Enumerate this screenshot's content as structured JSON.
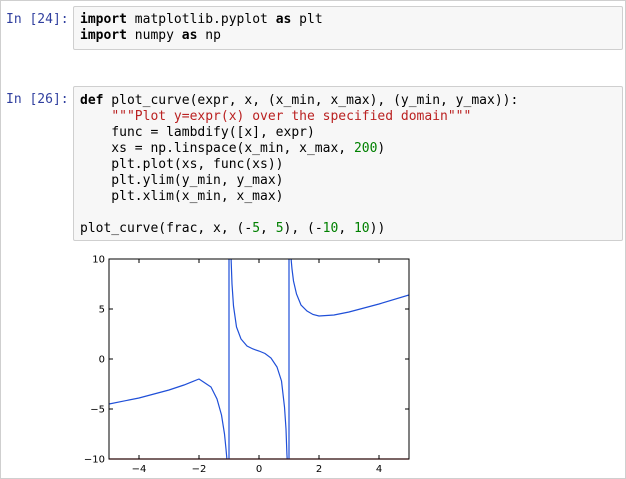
{
  "cells": [
    {
      "prompt": "In [24]:",
      "lines": [
        [
          {
            "t": "import",
            "c": "kw"
          },
          {
            "t": " matplotlib.pyplot ",
            "c": ""
          },
          {
            "t": "as",
            "c": "kw"
          },
          {
            "t": " plt",
            "c": ""
          }
        ],
        [
          {
            "t": "import",
            "c": "kw"
          },
          {
            "t": " numpy ",
            "c": ""
          },
          {
            "t": "as",
            "c": "kw"
          },
          {
            "t": " np",
            "c": ""
          }
        ]
      ]
    },
    {
      "prompt": "In [26]:",
      "lines": [
        [
          {
            "t": "def",
            "c": "kw"
          },
          {
            "t": " plot_curve(expr, x, (x_min, x_max), (y_min, y_max)):",
            "c": ""
          }
        ],
        [
          {
            "t": "    ",
            "c": ""
          },
          {
            "t": "\"\"\"Plot y=expr(x) over the specified domain\"\"\"",
            "c": "str"
          }
        ],
        [
          {
            "t": "    func = lambdify([x], expr)",
            "c": ""
          }
        ],
        [
          {
            "t": "    xs = np.linspace(x_min, x_max, ",
            "c": ""
          },
          {
            "t": "200",
            "c": "num"
          },
          {
            "t": ")",
            "c": ""
          }
        ],
        [
          {
            "t": "    plt.plot(xs, func(xs))",
            "c": ""
          }
        ],
        [
          {
            "t": "    plt.ylim(y_min, y_max)",
            "c": ""
          }
        ],
        [
          {
            "t": "    plt.xlim(x_min, x_max)",
            "c": ""
          }
        ],
        [
          {
            "t": "",
            "c": ""
          }
        ],
        [
          {
            "t": "plot_curve(frac, x, (",
            "c": ""
          },
          {
            "t": "-",
            "c": "neg"
          },
          {
            "t": "5",
            "c": "num"
          },
          {
            "t": ", ",
            "c": ""
          },
          {
            "t": "5",
            "c": "num"
          },
          {
            "t": "), (",
            "c": ""
          },
          {
            "t": "-",
            "c": "neg"
          },
          {
            "t": "10",
            "c": "num"
          },
          {
            "t": ", ",
            "c": ""
          },
          {
            "t": "10",
            "c": "num"
          },
          {
            "t": "))",
            "c": ""
          }
        ]
      ]
    }
  ],
  "chart_data": {
    "type": "line",
    "xlim": [
      -5,
      5
    ],
    "ylim": [
      -10,
      10
    ],
    "xticks": [
      -4,
      -2,
      0,
      2,
      4
    ],
    "yticks": [
      -10,
      -5,
      0,
      5,
      10
    ],
    "xtick_labels": [
      "−4",
      "−2",
      "0",
      "2",
      "4"
    ],
    "ytick_labels": [
      "−10",
      "−5",
      "0",
      "5",
      "10"
    ],
    "vertical_asymptotes": [
      -1,
      1
    ],
    "series": [
      {
        "color": "#1f4fd8",
        "segments": [
          {
            "x": [
              -5.0,
              -4.0,
              -3.0,
              -2.5,
              -2.0,
              -1.6,
              -1.4,
              -1.25,
              -1.15,
              -1.1,
              -1.07,
              -1.05
            ],
            "y": [
              -4.5,
              -3.9,
              -3.1,
              -2.6,
              -2.0,
              -2.8,
              -4.0,
              -5.6,
              -7.5,
              -9.0,
              -10.0,
              -10.6
            ]
          },
          {
            "x": [
              -0.95,
              -0.93,
              -0.9,
              -0.85,
              -0.75,
              -0.6,
              -0.4,
              -0.2,
              0.0,
              0.2,
              0.4,
              0.6,
              0.75,
              0.85,
              0.9,
              0.93,
              0.95
            ],
            "y": [
              10.6,
              10.0,
              7.5,
              5.3,
              3.2,
              2.0,
              1.3,
              1.0,
              0.8,
              0.55,
              0.1,
              -0.8,
              -2.2,
              -4.8,
              -7.0,
              -9.5,
              -10.6
            ]
          },
          {
            "x": [
              1.04,
              1.07,
              1.1,
              1.15,
              1.25,
              1.4,
              1.6,
              1.8,
              2.0,
              2.5,
              3.0,
              4.0,
              5.0
            ],
            "y": [
              10.6,
              10.0,
              9.0,
              7.8,
              6.5,
              5.4,
              4.8,
              4.45,
              4.3,
              4.4,
              4.7,
              5.5,
              6.4
            ]
          }
        ]
      }
    ]
  }
}
